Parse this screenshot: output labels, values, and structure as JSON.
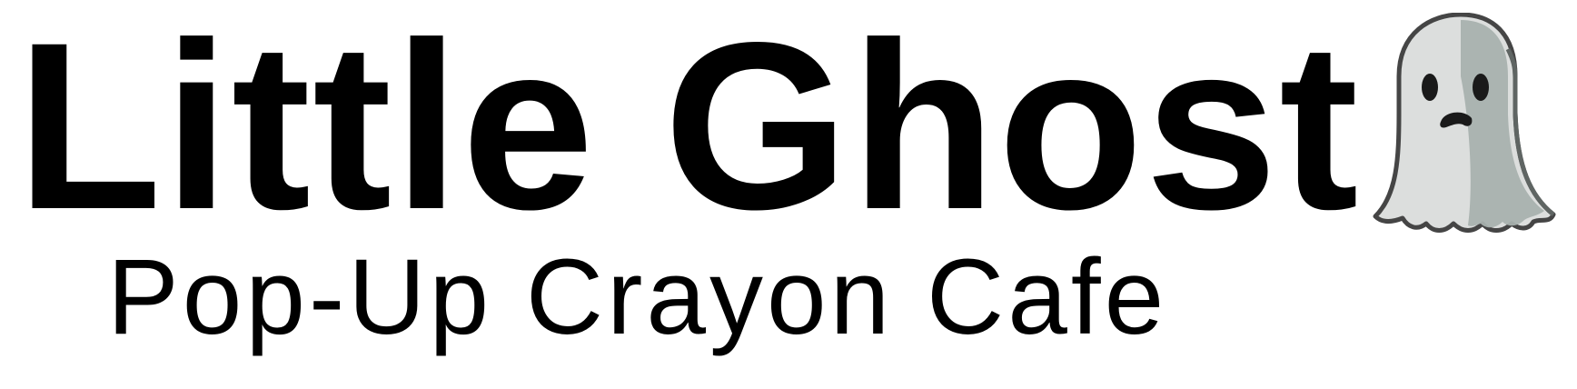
{
  "logo": {
    "title": "Little Ghost",
    "subtitle": "Pop-Up Crayon Cafe",
    "icon": "ghost-icon"
  },
  "colors": {
    "text": "#000000",
    "background": "#ffffff",
    "ghost_body_light": "#dcdedd",
    "ghost_body_shadow": "#a8b1ae",
    "ghost_outline": "#454545"
  }
}
